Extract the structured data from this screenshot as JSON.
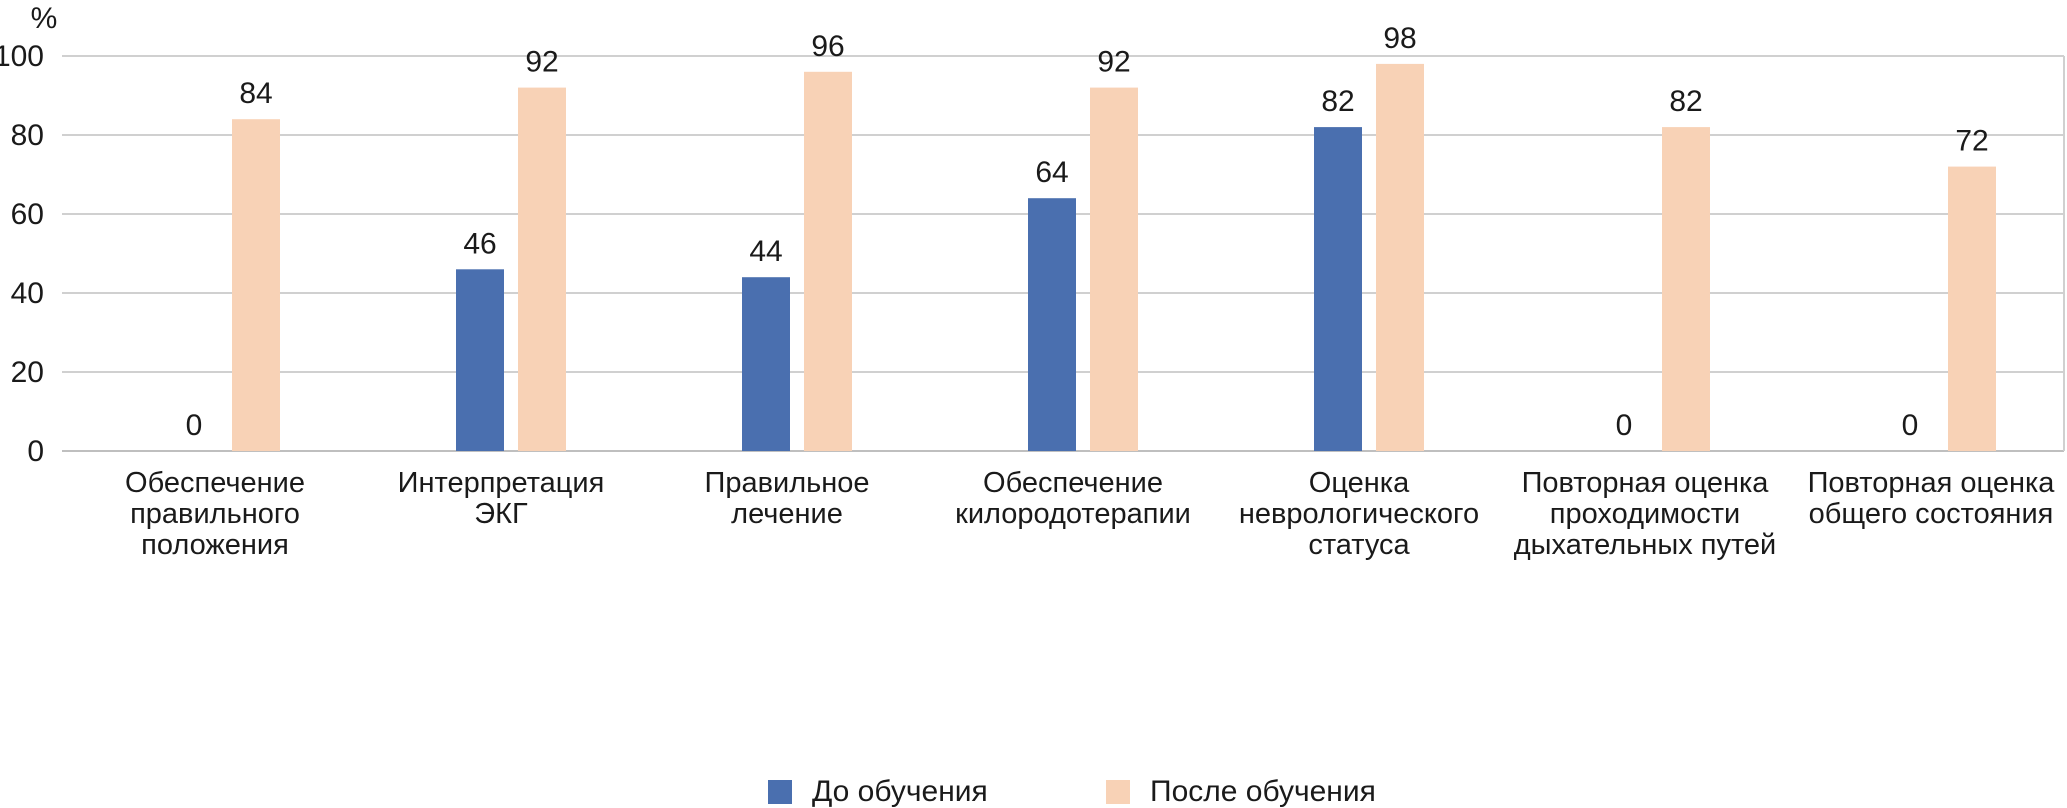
{
  "chart_data": {
    "type": "bar",
    "ylabel": "%",
    "ylim": [
      0,
      100
    ],
    "yticks": [
      0,
      20,
      40,
      60,
      80,
      100
    ],
    "grid": true,
    "legend_position": "bottom",
    "categories": [
      [
        "Обеспечение",
        "правильного",
        "положения"
      ],
      [
        "Интерпретация",
        "ЭКГ"
      ],
      [
        "Правильное",
        "лечение"
      ],
      [
        "Обеспечение",
        "килородотерапии"
      ],
      [
        "Оценка",
        "неврологического",
        "статуса"
      ],
      [
        "Повторная оценка",
        "проходимости",
        "дыхательных путей"
      ],
      [
        "Повторная оценка",
        "общего состояния"
      ]
    ],
    "series": [
      {
        "name": "До обучения",
        "color": "#4a6faf",
        "values": [
          0,
          46,
          44,
          64,
          82,
          0,
          0
        ]
      },
      {
        "name": "После обучения",
        "color": "#f8d2b6",
        "values": [
          84,
          92,
          96,
          92,
          98,
          82,
          72
        ]
      }
    ]
  }
}
